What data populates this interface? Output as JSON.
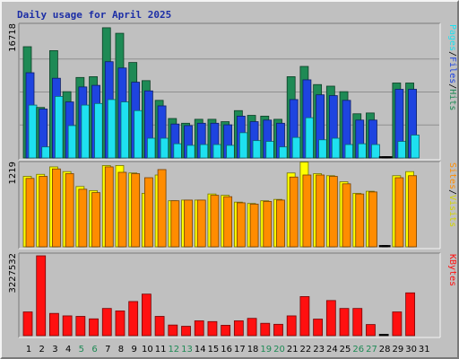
{
  "chart_data": {
    "type": "bar",
    "title": "Daily usage for April 2025",
    "days": [
      "1",
      "2",
      "3",
      "4",
      "5",
      "6",
      "7",
      "8",
      "9",
      "10",
      "11",
      "12",
      "13",
      "14",
      "15",
      "16",
      "17",
      "18",
      "19",
      "20",
      "21",
      "22",
      "23",
      "24",
      "25",
      "26",
      "27",
      "28",
      "29",
      "30",
      "31"
    ],
    "weekend_days": [
      "5",
      "6",
      "12",
      "13",
      "19",
      "20",
      "26",
      "27"
    ],
    "panels": [
      {
        "id": "hits",
        "max_label": "16718",
        "ymax": 16718,
        "grid": true,
        "series": [
          {
            "name": "Hits",
            "color": "#1e8a55",
            "values": [
              14100,
              6400,
              13600,
              8400,
              10200,
              10300,
              16500,
              15800,
              12100,
              9800,
              7300,
              5000,
              4400,
              4900,
              4900,
              4600,
              6000,
              5400,
              5300,
              4900,
              10300,
              11600,
              9300,
              9100,
              8400,
              5600,
              5700,
              0,
              9500,
              9500,
              null
            ]
          },
          {
            "name": "Files",
            "color": "#1e44e0",
            "values": [
              10800,
              6200,
              10100,
              7100,
              9000,
              9200,
              12200,
              11400,
              9600,
              8500,
              6600,
              4300,
              4100,
              4400,
              4400,
              4200,
              5300,
              4600,
              4800,
              4400,
              7400,
              9900,
              8000,
              7900,
              7300,
              4800,
              4800,
              0,
              8700,
              8700,
              null
            ]
          },
          {
            "name": "Pages",
            "color": "#1ee0f0",
            "values": [
              6700,
              1400,
              7800,
              4100,
              6700,
              6900,
              7400,
              7100,
              6000,
              2500,
              2500,
              1800,
              1600,
              1700,
              1700,
              1600,
              3200,
              2200,
              2100,
              1400,
              2600,
              5100,
              2300,
              2500,
              1700,
              1800,
              1700,
              0,
              2100,
              2900,
              null
            ]
          }
        ],
        "legend": [
          {
            "text": "Hits",
            "color": "#1e8a55"
          },
          {
            "text": "Files",
            "color": "#1e44e0"
          },
          {
            "text": "Pages",
            "color": "#1ee0f0"
          }
        ]
      },
      {
        "id": "visits",
        "max_label": "1219",
        "ymax": 1219,
        "grid": false,
        "series": [
          {
            "name": "Visits",
            "color": "#ffff00",
            "values": [
              1040,
              1070,
              1180,
              1110,
              890,
              830,
              1200,
              1200,
              1090,
              790,
              1060,
              680,
              690,
              690,
              780,
              760,
              660,
              640,
              680,
              700,
              1090,
              1250,
              1080,
              1050,
              960,
              790,
              820,
              0,
              1050,
              1110,
              null
            ]
          },
          {
            "name": "Sites",
            "color": "#ff8c00",
            "values": [
              1010,
              1040,
              1150,
              1080,
              850,
              800,
              1180,
              1100,
              1080,
              1020,
              1140,
              680,
              690,
              690,
              760,
              740,
              650,
              630,
              670,
              690,
              1030,
              1060,
              1060,
              1040,
              930,
              780,
              810,
              0,
              1020,
              1050,
              null
            ]
          }
        ],
        "legend": [
          {
            "text": "Visits",
            "color": "#ffff00"
          },
          {
            "text": "Sites",
            "color": "#ff8c00"
          }
        ]
      },
      {
        "id": "kbytes",
        "max_label": "3227532",
        "ymax": 3227532,
        "grid": false,
        "series": [
          {
            "name": "KBytes",
            "color": "#ff1010",
            "values": [
              960000,
              3227532,
              900000,
              800000,
              780000,
              680000,
              1100000,
              1000000,
              1380000,
              1680000,
              780000,
              430000,
              380000,
              600000,
              570000,
              420000,
              600000,
              700000,
              500000,
              460000,
              800000,
              1580000,
              670000,
              1420000,
              1100000,
              1100000,
              450000,
              0,
              960000,
              1730000,
              null
            ]
          }
        ],
        "legend": [
          {
            "text": "KBytes",
            "color": "#ff1010"
          }
        ]
      }
    ]
  }
}
